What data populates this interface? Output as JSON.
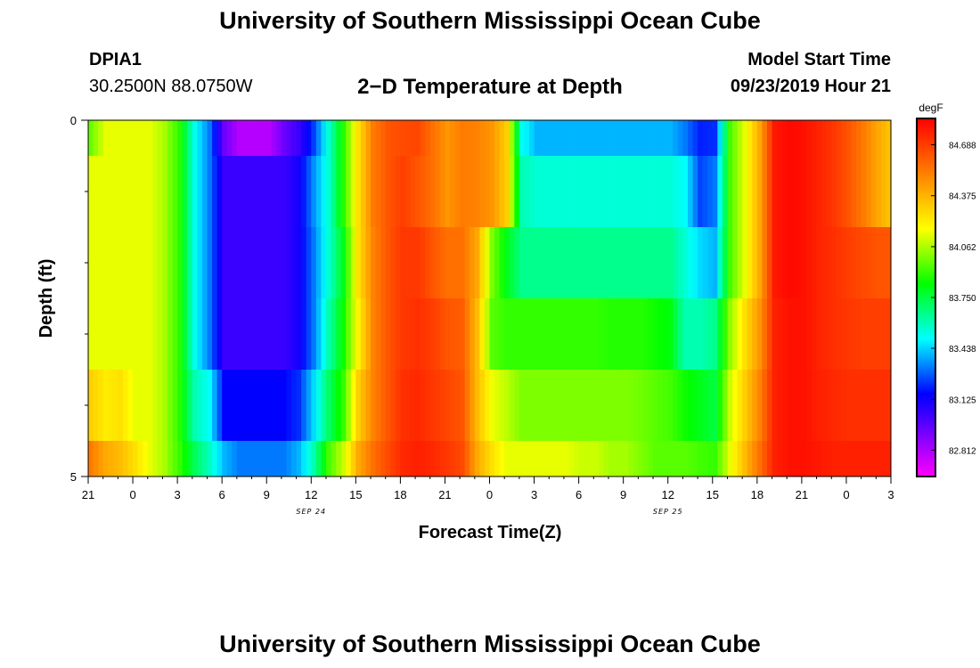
{
  "header": {
    "title": "University of Southern Mississippi Ocean Cube",
    "station_id": "DPIA1",
    "location": "30.2500N 88.0750W",
    "subtitle": "2−D Temperature at Depth",
    "model_start_label": "Model Start Time",
    "model_start_time": "09/23/2019 Hour 21"
  },
  "footer": {
    "title": "University of Southern Mississippi Ocean Cube"
  },
  "chart_data": {
    "type": "heatmap",
    "title": "2−D Temperature at Depth",
    "xlabel": "Forecast Time(Z)",
    "ylabel": "Depth (ft)",
    "x_tick_labels": [
      "21",
      "0",
      "3",
      "6",
      "9",
      "12",
      "15",
      "18",
      "21",
      "0",
      "3",
      "6",
      "9",
      "12",
      "15",
      "18",
      "21",
      "0",
      "3"
    ],
    "x_hours": [
      0,
      54
    ],
    "date_labels": [
      {
        "text": "SEP 24",
        "hour": 15
      },
      {
        "text": "SEP 25",
        "hour": 39
      }
    ],
    "ylim": [
      0,
      5
    ],
    "y_tick_labels": [
      "0",
      "5"
    ],
    "y_minor_ticks": [
      1,
      2,
      3,
      4
    ],
    "depth_layers": [
      0,
      1,
      2,
      3,
      4
    ],
    "colorbar": {
      "unit": "degF",
      "min": 82.656,
      "max": 84.844,
      "tick_labels": [
        "84.688",
        "84.375",
        "84.062",
        "83.750",
        "83.438",
        "83.125",
        "82.812"
      ],
      "colors": [
        "#ff00ff",
        "#aa00ff",
        "#5000ff",
        "#0000ff",
        "#0080ff",
        "#00ffff",
        "#00ff80",
        "#00ff00",
        "#80ff00",
        "#ffff00",
        "#ffc000",
        "#ff8000",
        "#ff4000",
        "#ff0000"
      ]
    },
    "temperature_by_hour": [
      [
        83.97,
        84.14,
        84.14,
        84.14,
        84.3,
        84.52
      ],
      [
        84.14,
        84.14,
        84.14,
        84.14,
        84.22,
        84.4
      ],
      [
        84.14,
        84.14,
        84.14,
        84.14,
        84.25,
        84.35
      ],
      [
        84.14,
        84.14,
        84.14,
        84.14,
        84.14,
        84.25
      ],
      [
        84.14,
        84.14,
        84.14,
        84.14,
        84.14,
        84.14
      ],
      [
        84.05,
        84.05,
        84.05,
        84.05,
        84.05,
        84.05
      ],
      [
        83.88,
        83.88,
        83.88,
        83.88,
        83.88,
        83.9
      ],
      [
        83.52,
        83.52,
        83.52,
        83.52,
        83.6,
        83.72
      ],
      [
        83.32,
        83.32,
        83.32,
        83.32,
        83.5,
        83.58
      ],
      [
        82.94,
        83.04,
        83.04,
        83.04,
        83.16,
        83.4
      ],
      [
        82.8,
        83.04,
        83.04,
        83.04,
        83.16,
        83.32
      ],
      [
        82.8,
        83.04,
        83.04,
        83.04,
        83.16,
        83.32
      ],
      [
        82.8,
        83.04,
        83.04,
        83.04,
        83.16,
        83.32
      ],
      [
        82.94,
        83.04,
        83.04,
        83.04,
        83.16,
        83.32
      ],
      [
        83.04,
        83.12,
        83.12,
        83.12,
        83.22,
        83.4
      ],
      [
        83.24,
        83.35,
        83.32,
        83.32,
        83.45,
        83.6
      ],
      [
        83.55,
        83.55,
        83.55,
        83.6,
        83.7,
        83.92
      ],
      [
        83.88,
        83.88,
        83.8,
        83.85,
        83.9,
        84.1
      ],
      [
        84.25,
        84.25,
        84.25,
        84.2,
        84.3,
        84.4
      ],
      [
        84.52,
        84.52,
        84.5,
        84.5,
        84.5,
        84.55
      ],
      [
        84.62,
        84.62,
        84.62,
        84.62,
        84.62,
        84.65
      ],
      [
        84.65,
        84.68,
        84.7,
        84.7,
        84.72,
        84.74
      ],
      [
        84.66,
        84.62,
        84.7,
        84.72,
        84.74,
        84.76
      ],
      [
        84.55,
        84.55,
        84.62,
        84.68,
        84.7,
        84.74
      ],
      [
        84.45,
        84.45,
        84.55,
        84.62,
        84.66,
        84.7
      ],
      [
        84.52,
        84.52,
        84.55,
        84.6,
        84.62,
        84.65
      ],
      [
        84.5,
        84.5,
        84.4,
        84.35,
        84.35,
        84.4
      ],
      [
        84.45,
        84.45,
        84.0,
        83.95,
        84.15,
        84.25
      ],
      [
        84.3,
        84.3,
        83.8,
        83.9,
        84.08,
        84.14
      ],
      [
        83.52,
        83.6,
        83.65,
        83.9,
        84.0,
        84.14
      ],
      [
        83.4,
        83.55,
        83.65,
        83.9,
        84.0,
        84.14
      ],
      [
        83.4,
        83.55,
        83.65,
        83.9,
        84.0,
        84.14
      ],
      [
        83.4,
        83.55,
        83.65,
        83.9,
        84.0,
        84.14
      ],
      [
        83.4,
        83.55,
        83.65,
        83.9,
        84.0,
        84.1
      ],
      [
        83.4,
        83.55,
        83.65,
        83.9,
        84.0,
        84.1
      ],
      [
        83.4,
        83.55,
        83.65,
        83.88,
        84.0,
        84.05
      ],
      [
        83.4,
        83.55,
        83.65,
        83.88,
        84.0,
        84.05
      ],
      [
        83.4,
        83.55,
        83.65,
        83.88,
        83.98,
        84.0
      ],
      [
        83.4,
        83.55,
        83.65,
        83.85,
        83.95,
        83.95
      ],
      [
        83.4,
        83.55,
        83.65,
        83.82,
        83.92,
        83.95
      ],
      [
        83.32,
        83.5,
        83.55,
        83.6,
        83.85,
        83.95
      ],
      [
        83.2,
        83.25,
        83.45,
        83.6,
        83.8,
        83.92
      ],
      [
        83.22,
        83.32,
        83.4,
        83.65,
        83.75,
        83.9
      ],
      [
        83.92,
        83.92,
        83.92,
        84.02,
        84.1,
        84.14
      ],
      [
        84.14,
        84.14,
        84.14,
        84.25,
        84.3,
        84.35
      ],
      [
        84.4,
        84.4,
        84.4,
        84.45,
        84.5,
        84.55
      ],
      [
        84.78,
        84.78,
        84.78,
        84.76,
        84.76,
        84.76
      ],
      [
        84.82,
        84.82,
        84.82,
        84.8,
        84.8,
        84.8
      ],
      [
        84.8,
        84.8,
        84.8,
        84.8,
        84.8,
        84.8
      ],
      [
        84.75,
        84.75,
        84.75,
        84.75,
        84.76,
        84.78
      ],
      [
        84.7,
        84.7,
        84.72,
        84.72,
        84.74,
        84.76
      ],
      [
        84.62,
        84.62,
        84.68,
        84.7,
        84.72,
        84.76
      ],
      [
        84.52,
        84.52,
        84.65,
        84.68,
        84.72,
        84.76
      ],
      [
        84.4,
        84.4,
        84.62,
        84.68,
        84.72,
        84.76
      ],
      [
        84.3,
        84.3,
        84.62,
        84.68,
        84.72,
        84.76
      ]
    ]
  }
}
